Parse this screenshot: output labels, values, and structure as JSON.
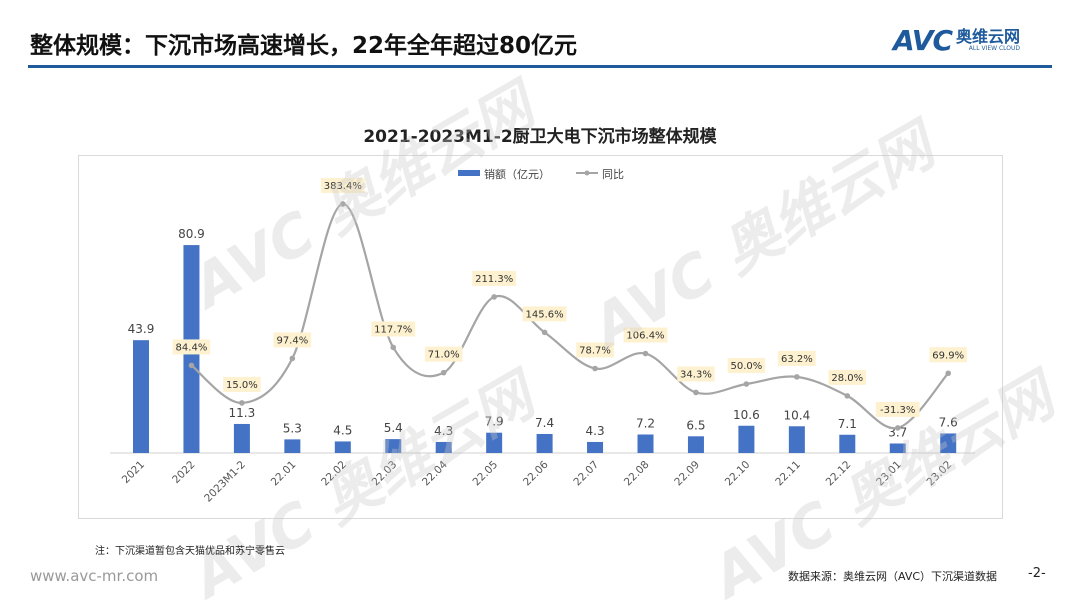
{
  "header": {
    "title": "整体规模：下沉市场高速增长，22年全年超过80亿元",
    "logo_mark": "AVC",
    "logo_cn": "奥维云网",
    "logo_en": "ALL VIEW CLOUD",
    "accent": "#1f5b9c"
  },
  "chart_data": {
    "type": "bar+line",
    "title": "2021-2023M1-2厨卫大电下沉市场整体规模",
    "legend_position": "top",
    "categories": [
      "2021",
      "2022",
      "2023M1-2",
      "22.01",
      "22.02",
      "22.03",
      "22.04",
      "22.05",
      "22.06",
      "22.07",
      "22.08",
      "22.09",
      "22.10",
      "22.11",
      "22.12",
      "23.01",
      "23.02"
    ],
    "series": [
      {
        "name": "销额（亿元）",
        "type": "bar",
        "color": "#4472c4",
        "values": [
          43.9,
          80.9,
          11.3,
          5.3,
          4.5,
          5.4,
          4.3,
          7.9,
          7.4,
          4.3,
          7.2,
          6.5,
          10.6,
          10.4,
          7.1,
          3.7,
          7.6
        ],
        "labels": [
          "43.9",
          "80.9",
          "11.3",
          "5.3",
          "4.5",
          "5.4",
          "4.3",
          "7.9",
          "7.4",
          "4.3",
          "7.2",
          "6.5",
          "10.6",
          "10.4",
          "7.1",
          "3.7",
          "7.6"
        ]
      },
      {
        "name": "同比",
        "type": "line",
        "color": "#a5a5a5",
        "values": [
          null,
          84.4,
          15.0,
          97.4,
          383.4,
          117.7,
          71.0,
          211.3,
          145.6,
          78.7,
          106.4,
          34.3,
          50.0,
          63.2,
          28.0,
          -31.3,
          69.9
        ],
        "labels": [
          "",
          "84.4%",
          "15.0%",
          "97.4%",
          "383.4%",
          "117.7%",
          "71.0%",
          "211.3%",
          "145.6%",
          "78.7%",
          "106.4%",
          "34.3%",
          "50.0%",
          "63.2%",
          "28.0%",
          "-31.3%",
          "69.9%"
        ]
      }
    ],
    "grid": false
  },
  "footer": {
    "note": "注：下沉渠道暂包含天猫优品和苏宁零售云",
    "url": "www.avc-mr.com",
    "source": "数据来源：奥维云网（AVC）下沉渠道数据",
    "page": "-2-"
  }
}
